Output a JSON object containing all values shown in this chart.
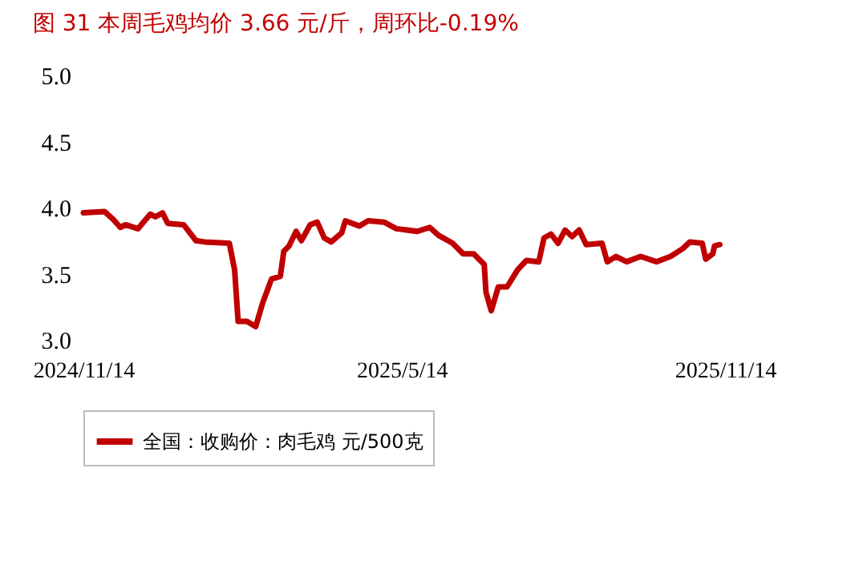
{
  "chart_data": {
    "type": "line",
    "title": "图 31 本周毛鸡均价 3.66 元/斤，周环比-0.19%",
    "x": [
      "2024-11-14",
      "2024-11-26",
      "2024-12-01",
      "2024-12-05",
      "2024-12-08",
      "2024-12-15",
      "2024-12-22",
      "2024-12-25",
      "2024-12-29",
      "2025-01-01",
      "2025-01-10",
      "2025-01-17",
      "2025-01-22",
      "2025-02-05",
      "2025-02-08",
      "2025-02-10",
      "2025-02-15",
      "2025-02-20",
      "2025-02-24",
      "2025-03-01",
      "2025-03-06",
      "2025-03-08",
      "2025-03-11",
      "2025-03-15",
      "2025-03-18",
      "2025-03-23",
      "2025-03-27",
      "2025-03-31",
      "2025-04-04",
      "2025-04-10",
      "2025-04-12",
      "2025-04-20",
      "2025-04-25",
      "2025-05-04",
      "2025-05-11",
      "2025-05-23",
      "2025-05-30",
      "2025-06-04",
      "2025-06-12",
      "2025-06-18",
      "2025-06-24",
      "2025-06-30",
      "2025-07-01",
      "2025-07-04",
      "2025-07-08",
      "2025-07-13",
      "2025-07-19",
      "2025-07-24",
      "2025-07-31",
      "2025-08-03",
      "2025-08-07",
      "2025-08-11",
      "2025-08-15",
      "2025-08-19",
      "2025-08-23",
      "2025-08-27",
      "2025-09-05",
      "2025-09-08",
      "2025-09-13",
      "2025-09-19",
      "2025-09-27",
      "2025-10-06",
      "2025-10-14",
      "2025-10-21",
      "2025-10-25",
      "2025-11-01",
      "2025-11-03",
      "2025-11-07",
      "2025-11-08",
      "2025-11-11"
    ],
    "series": [
      {
        "name": "全国：收购价：肉毛鸡 元/500克",
        "color": "#c00000",
        "values": [
          3.96,
          3.97,
          3.91,
          3.85,
          3.87,
          3.84,
          3.95,
          3.93,
          3.96,
          3.88,
          3.87,
          3.75,
          3.74,
          3.73,
          3.53,
          3.14,
          3.14,
          3.1,
          3.28,
          3.46,
          3.48,
          3.67,
          3.71,
          3.82,
          3.75,
          3.87,
          3.89,
          3.77,
          3.74,
          3.81,
          3.9,
          3.86,
          3.9,
          3.89,
          3.84,
          3.82,
          3.85,
          3.79,
          3.73,
          3.65,
          3.65,
          3.57,
          3.36,
          3.22,
          3.4,
          3.4,
          3.53,
          3.6,
          3.59,
          3.77,
          3.8,
          3.73,
          3.83,
          3.78,
          3.83,
          3.72,
          3.73,
          3.59,
          3.63,
          3.59,
          3.63,
          3.59,
          3.63,
          3.69,
          3.74,
          3.73,
          3.61,
          3.65,
          3.71,
          3.72
        ]
      }
    ],
    "xlim": [
      "2024-11-14",
      "2025-11-14"
    ],
    "xticks": [
      {
        "value": "2024-11-14",
        "label": "2024/11/14"
      },
      {
        "value": "2025-05-14",
        "label": "2025/5/14"
      },
      {
        "value": "2025-11-14",
        "label": "2025/11/14"
      }
    ],
    "ylim": [
      3.0,
      5.0
    ],
    "yticks": [
      {
        "value": 3.0,
        "label": "3.0"
      },
      {
        "value": 3.5,
        "label": "3.5"
      },
      {
        "value": 4.0,
        "label": "4.0"
      },
      {
        "value": 4.5,
        "label": "4.5"
      },
      {
        "value": 5.0,
        "label": "5.0"
      }
    ],
    "grid": false,
    "legend": "bottom",
    "marker": "none",
    "line_style": "solid"
  }
}
